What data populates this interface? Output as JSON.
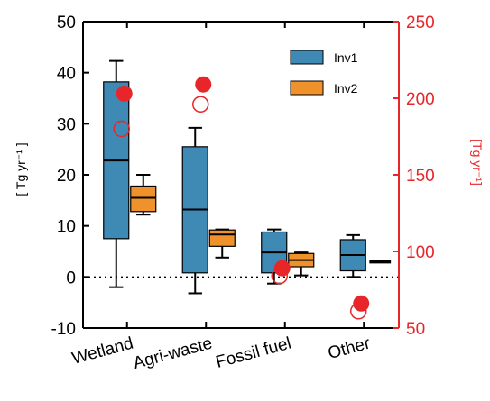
{
  "chart_data": {
    "type": "box",
    "categories": [
      "Wetland",
      "Agri-waste",
      "Fossil fuel",
      "Other"
    ],
    "ylabel": "[ Tg yr⁻¹ ]",
    "ylabel_right": "[Tg yr⁻¹]",
    "ylim": [
      -10,
      50
    ],
    "yticks": [
      -10,
      0,
      10,
      20,
      30,
      40,
      50
    ],
    "ylim_right": [
      50,
      250
    ],
    "yticks_right": [
      50,
      100,
      150,
      200,
      250
    ],
    "zero_line": "dotted",
    "legend_position": "top-right",
    "colors": {
      "Inv1": "#3f89b5",
      "Inv2": "#f0922c",
      "right_axis": "#e8262a",
      "axis": "#000000"
    },
    "series": [
      {
        "name": "Inv1",
        "boxes": [
          {
            "whisker_low": -2,
            "q1": 7.5,
            "median": 22.8,
            "q3": 38.2,
            "whisker_high": 42.3
          },
          {
            "whisker_low": -3.2,
            "q1": 0.8,
            "median": 13.2,
            "q3": 25.5,
            "whisker_high": 29.2
          },
          {
            "whisker_low": -1.3,
            "q1": 0.8,
            "median": 4.8,
            "q3": 8.8,
            "whisker_high": 9.3
          },
          {
            "whisker_low": 0,
            "q1": 1.2,
            "median": 4.3,
            "q3": 7.3,
            "whisker_high": 8.2
          }
        ]
      },
      {
        "name": "Inv2",
        "boxes": [
          {
            "whisker_low": 12.2,
            "q1": 12.8,
            "median": 15.5,
            "q3": 17.8,
            "whisker_high": 20.0
          },
          {
            "whisker_low": 3.8,
            "q1": 6.0,
            "median": 8.3,
            "q3": 9.2,
            "whisker_high": 9.3
          },
          {
            "whisker_low": 0.3,
            "q1": 2.0,
            "median": 3.3,
            "q3": 4.6,
            "whisker_high": 4.8
          },
          {
            "whisker_low": 3.0,
            "q1": 3.0,
            "median": 3.0,
            "q3": 3.0,
            "whisker_high": 3.0
          }
        ]
      }
    ],
    "right_axis_points": {
      "filled": [
        203,
        209,
        89,
        66
      ],
      "open": [
        180,
        196,
        84,
        61
      ]
    }
  }
}
